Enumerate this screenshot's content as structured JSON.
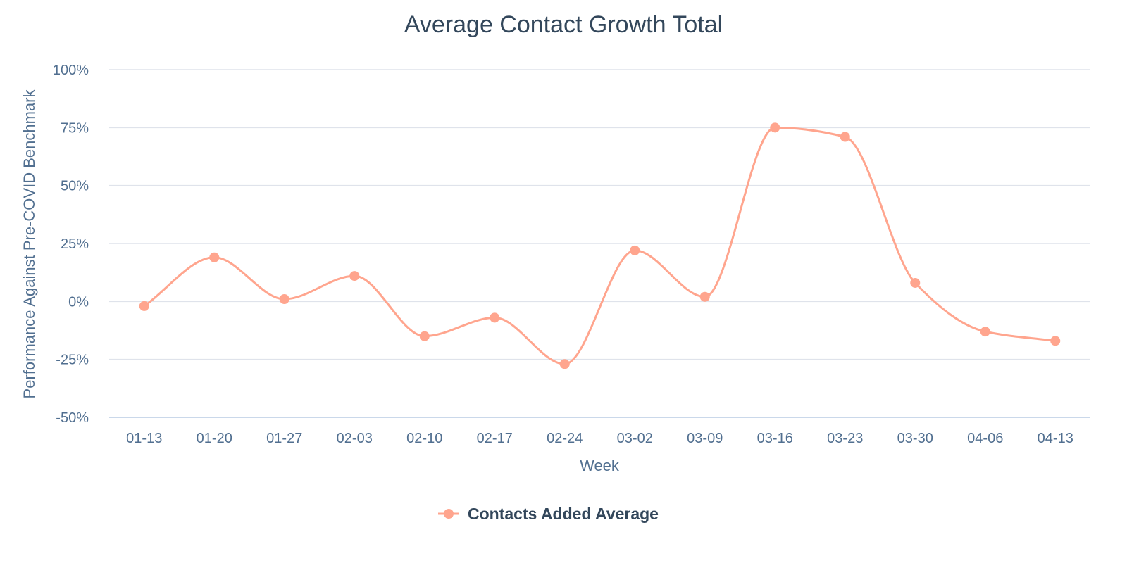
{
  "chart_data": {
    "type": "line",
    "title": "Average Contact Growth Total",
    "xlabel": "Week",
    "ylabel": "Performance Against Pre-COVID Benchmark",
    "ylim": [
      -50,
      100
    ],
    "yticks": [
      -50,
      -25,
      0,
      25,
      50,
      75,
      100
    ],
    "ytick_labels": [
      "-50%",
      "-25%",
      "0%",
      "25%",
      "50%",
      "75%",
      "100%"
    ],
    "categories": [
      "01-13",
      "01-20",
      "01-27",
      "02-03",
      "02-10",
      "02-17",
      "02-24",
      "03-02",
      "03-09",
      "03-16",
      "03-23",
      "03-30",
      "04-06",
      "04-13"
    ],
    "series": [
      {
        "name": "Contacts Added Average",
        "color": "#ffa58e",
        "values": [
          -2,
          19,
          1,
          11,
          -15,
          -7,
          -27,
          22,
          2,
          75,
          71,
          8,
          -13,
          -17
        ]
      }
    ],
    "grid": true,
    "legend": "bottom-center",
    "smooth": true
  }
}
